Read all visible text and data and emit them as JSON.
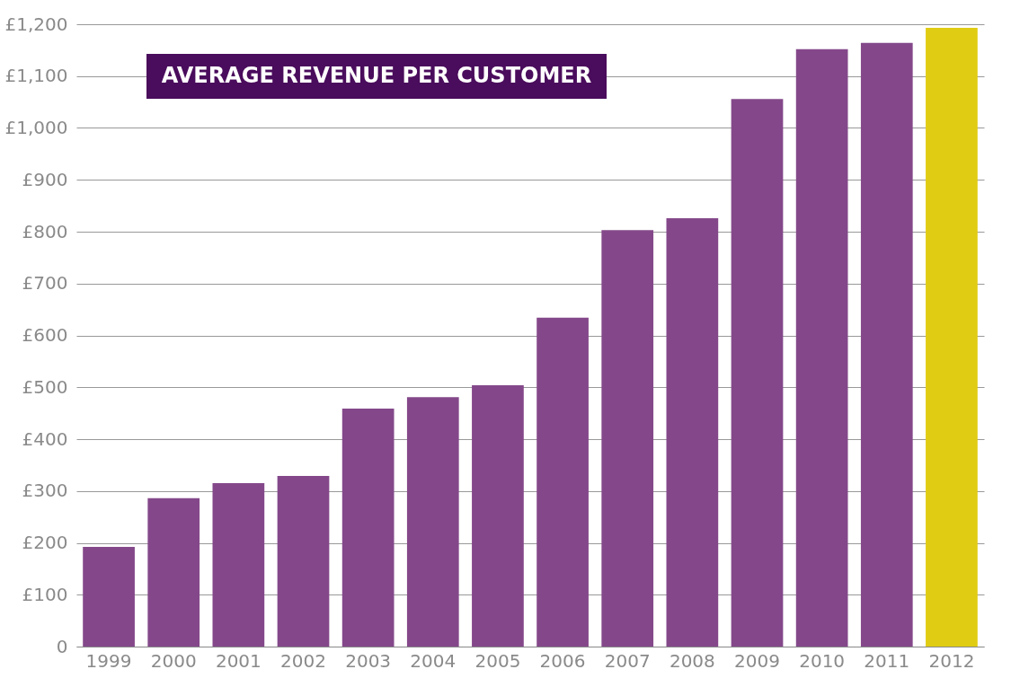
{
  "chart_data": {
    "type": "bar",
    "title": "AVERAGE REVENUE PER CUSTOMER",
    "categories": [
      "1999",
      "2000",
      "2001",
      "2002",
      "2003",
      "2004",
      "2005",
      "2006",
      "2007",
      "2008",
      "2009",
      "2010",
      "2011",
      "2012"
    ],
    "values": [
      192,
      286,
      315,
      329,
      459,
      481,
      504,
      634,
      803,
      826,
      1056,
      1152,
      1164,
      1193
    ],
    "colors": [
      "#84488a",
      "#84488a",
      "#84488a",
      "#84488a",
      "#84488a",
      "#84488a",
      "#84488a",
      "#84488a",
      "#84488a",
      "#84488a",
      "#84488a",
      "#84488a",
      "#84488a",
      "#e0cc12"
    ],
    "ylim": [
      0,
      1200
    ],
    "yticks": [
      0,
      {
        "value": 100,
        "label": "£100"
      },
      {
        "value": 200,
        "label": "£200"
      },
      {
        "value": 300,
        "label": "£300"
      },
      {
        "value": 400,
        "label": "£400"
      },
      {
        "value": 500,
        "label": "£500"
      },
      {
        "value": 600,
        "label": "£600"
      },
      {
        "value": 700,
        "label": "£700"
      },
      {
        "value": 800,
        "label": "£800"
      },
      {
        "value": 900,
        "label": "£900"
      },
      {
        "value": 1000,
        "label": "£1,000"
      },
      {
        "value": 1100,
        "label": "£1,100"
      },
      {
        "value": 1200,
        "label": "£1,200"
      }
    ],
    "grid": "y"
  }
}
